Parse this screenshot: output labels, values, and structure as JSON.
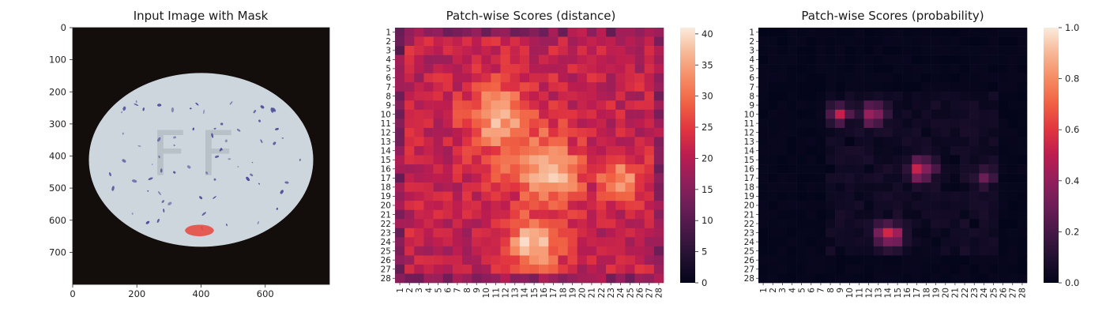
{
  "chart_data": [
    {
      "type": "image",
      "title": "Input Image with Mask",
      "xticks": [
        0,
        200,
        400,
        600
      ],
      "yticks": [
        0,
        100,
        200,
        300,
        400,
        500,
        600,
        700
      ],
      "xlim": [
        0,
        800
      ],
      "ylim": [
        800,
        0
      ],
      "image_content": "pill",
      "mask_region": {
        "center_x": 395,
        "center_y": 632,
        "radius_x": 45,
        "radius_y": 18,
        "color": "#e8453c"
      },
      "colors": {
        "background": "#130d0c",
        "pill": "#cdd6dc",
        "speckle": "#4b4c98"
      }
    },
    {
      "type": "heatmap",
      "title": "Patch-wise Scores (distance)",
      "rows": [
        "1",
        "2",
        "3",
        "4",
        "5",
        "6",
        "7",
        "8",
        "9",
        "10",
        "11",
        "12",
        "13",
        "14",
        "15",
        "16",
        "17",
        "18",
        "19",
        "20",
        "21",
        "22",
        "23",
        "24",
        "25",
        "26",
        "27",
        "28"
      ],
      "cols": [
        "1",
        "2",
        "3",
        "4",
        "5",
        "6",
        "7",
        "8",
        "9",
        "10",
        "11",
        "12",
        "13",
        "14",
        "15",
        "16",
        "17",
        "18",
        "19",
        "20",
        "21",
        "22",
        "23",
        "24",
        "25",
        "26",
        "27",
        "28"
      ],
      "colorbar_ticks": [
        0,
        5,
        10,
        15,
        20,
        25,
        30,
        35,
        40
      ],
      "vmin": 0,
      "vmax": 41,
      "baseline": 21,
      "hotspots": [
        {
          "row": 10.5,
          "col": 11.5,
          "value": 36,
          "spread": 2.6
        },
        {
          "row": 16.5,
          "col": 16.5,
          "value": 38,
          "spread": 2.4
        },
        {
          "row": 24,
          "col": 15,
          "value": 39,
          "spread": 2.0
        },
        {
          "row": 17,
          "col": 24,
          "value": 33,
          "spread": 1.8
        },
        {
          "row": 14,
          "col": 14,
          "value": 30,
          "spread": 3.5
        }
      ],
      "colormap": "rocket"
    },
    {
      "type": "heatmap",
      "title": "Patch-wise Scores (probability)",
      "rows": [
        "1",
        "2",
        "3",
        "4",
        "5",
        "6",
        "7",
        "8",
        "9",
        "10",
        "11",
        "12",
        "13",
        "14",
        "15",
        "16",
        "17",
        "18",
        "19",
        "20",
        "21",
        "22",
        "23",
        "24",
        "25",
        "26",
        "27",
        "28"
      ],
      "cols": [
        "1",
        "2",
        "3",
        "4",
        "5",
        "6",
        "7",
        "8",
        "9",
        "10",
        "11",
        "12",
        "13",
        "14",
        "15",
        "16",
        "17",
        "18",
        "19",
        "20",
        "21",
        "22",
        "23",
        "24",
        "25",
        "26",
        "27",
        "28"
      ],
      "colorbar_ticks": [
        "0.0",
        "0.2",
        "0.4",
        "0.6",
        "0.8",
        "1.0"
      ],
      "vmin": 0,
      "vmax": 1,
      "hotspots": [
        {
          "row": 10,
          "col": 9,
          "value": 0.5,
          "spread": 0.7
        },
        {
          "row": 10,
          "col": 12.5,
          "value": 0.5,
          "spread": 0.8
        },
        {
          "row": 16,
          "col": 17.5,
          "value": 0.55,
          "spread": 0.9
        },
        {
          "row": 17,
          "col": 24,
          "value": 0.3,
          "spread": 0.7
        },
        {
          "row": 23.3,
          "col": 14.2,
          "value": 0.62,
          "spread": 0.9
        }
      ],
      "colormap": "rocket"
    }
  ]
}
